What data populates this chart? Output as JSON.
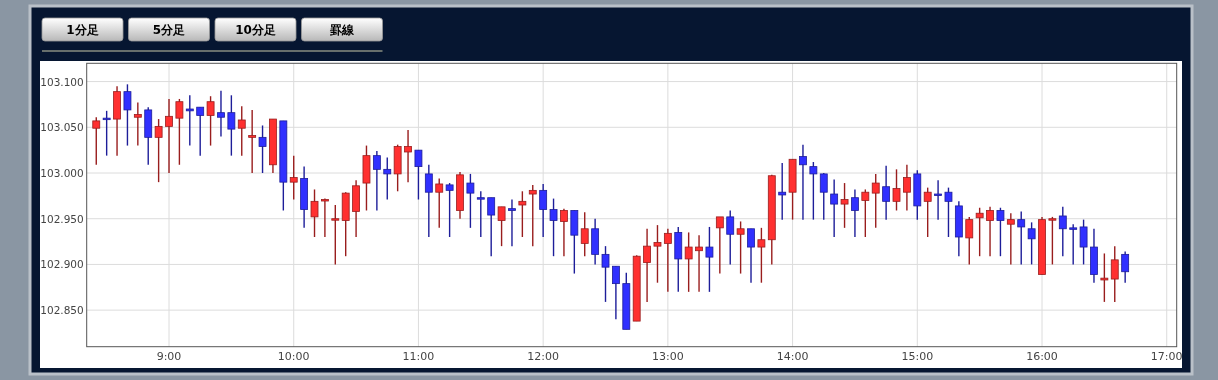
{
  "chart_data": {
    "type": "candlestick",
    "annotations": [
      "1分足",
      "5分足",
      "10分足",
      "罫線"
    ],
    "x": [
      8.4167,
      8.5,
      8.5833,
      8.6667,
      8.75,
      8.8333,
      8.9167,
      9,
      9.0833,
      9.1667,
      9.25,
      9.3333,
      9.4167,
      9.5,
      9.5833,
      9.6667,
      9.75,
      9.8333,
      9.9167,
      10,
      10.0833,
      10.1667,
      10.25,
      10.3333,
      10.4167,
      10.5,
      10.5833,
      10.6667,
      10.75,
      10.8333,
      10.9167,
      11,
      11.0833,
      11.1667,
      11.25,
      11.3333,
      11.4167,
      11.5,
      11.5833,
      11.6667,
      11.75,
      11.8333,
      11.9167,
      12,
      12.0833,
      12.1667,
      12.25,
      12.3333,
      12.4167,
      12.5,
      12.5833,
      12.6667,
      12.75,
      12.8333,
      12.9167,
      13,
      13.0833,
      13.1667,
      13.25,
      13.3333,
      13.4167,
      13.5,
      13.5833,
      13.6667,
      13.75,
      13.8333,
      13.9167,
      14,
      14.0833,
      14.1667,
      14.25,
      14.3333,
      14.4167,
      14.5,
      14.5833,
      14.6667,
      14.75,
      14.8333,
      14.9167,
      15,
      15.0833,
      15.1667,
      15.25,
      15.3333,
      15.4167,
      15.5,
      15.5833,
      15.6667,
      15.75,
      15.8333,
      15.9167,
      16,
      16.0833,
      16.1667,
      16.25,
      16.3333,
      16.4167,
      16.5,
      16.5833,
      16.6667
    ],
    "ohlc": [
      [
        103.049,
        103.061,
        103.009,
        103.057
      ],
      [
        103.06,
        103.068,
        103.019,
        103.059
      ],
      [
        103.059,
        103.095,
        103.019,
        103.089
      ],
      [
        103.089,
        103.097,
        103.03,
        103.069
      ],
      [
        103.061,
        103.077,
        103.03,
        103.064
      ],
      [
        103.069,
        103.072,
        103.009,
        103.039
      ],
      [
        103.039,
        103.059,
        102.99,
        103.051
      ],
      [
        103.051,
        103.081,
        103.0,
        103.062
      ],
      [
        103.06,
        103.081,
        103.009,
        103.078
      ],
      [
        103.07,
        103.085,
        103.03,
        103.068
      ],
      [
        103.072,
        103.072,
        103.019,
        103.063
      ],
      [
        103.063,
        103.084,
        103.03,
        103.078
      ],
      [
        103.066,
        103.09,
        103.04,
        103.061
      ],
      [
        103.066,
        103.085,
        103.019,
        103.048
      ],
      [
        103.049,
        103.073,
        103.019,
        103.058
      ],
      [
        103.039,
        103.069,
        103.0,
        103.041
      ],
      [
        103.039,
        103.052,
        103.0,
        103.029
      ],
      [
        103.009,
        103.059,
        103.0,
        103.059
      ],
      [
        103.057,
        103.057,
        102.959,
        102.99
      ],
      [
        102.99,
        103.019,
        102.971,
        102.995
      ],
      [
        102.994,
        103.007,
        102.94,
        102.96
      ],
      [
        102.952,
        102.982,
        102.93,
        102.969
      ],
      [
        102.97,
        102.972,
        102.93,
        102.971
      ],
      [
        102.949,
        102.965,
        102.9,
        102.95
      ],
      [
        102.948,
        102.979,
        102.909,
        102.978
      ],
      [
        102.958,
        102.992,
        102.93,
        102.986
      ],
      [
        102.989,
        103.03,
        102.959,
        103.019
      ],
      [
        103.019,
        103.024,
        102.959,
        103.004
      ],
      [
        103.004,
        103.017,
        102.971,
        102.999
      ],
      [
        102.999,
        103.031,
        102.98,
        103.029
      ],
      [
        103.023,
        103.047,
        102.99,
        103.029
      ],
      [
        103.025,
        103.025,
        102.971,
        103.007
      ],
      [
        102.999,
        103.009,
        102.93,
        102.979
      ],
      [
        102.979,
        102.994,
        102.94,
        102.988
      ],
      [
        102.987,
        102.989,
        102.93,
        102.981
      ],
      [
        102.959,
        103.001,
        102.95,
        102.998
      ],
      [
        102.989,
        102.999,
        102.94,
        102.978
      ],
      [
        102.973,
        102.98,
        102.93,
        102.972
      ],
      [
        102.973,
        102.973,
        102.909,
        102.954
      ],
      [
        102.948,
        102.963,
        102.92,
        102.963
      ],
      [
        102.961,
        102.971,
        102.92,
        102.959
      ],
      [
        102.965,
        102.98,
        102.93,
        102.969
      ],
      [
        102.977,
        102.987,
        102.92,
        102.981
      ],
      [
        102.981,
        102.988,
        102.93,
        102.96
      ],
      [
        102.96,
        102.972,
        102.909,
        102.948
      ],
      [
        102.947,
        102.961,
        102.909,
        102.959
      ],
      [
        102.959,
        102.959,
        102.89,
        102.932
      ],
      [
        102.923,
        102.957,
        102.909,
        102.939
      ],
      [
        102.939,
        102.95,
        102.9,
        102.911
      ],
      [
        102.911,
        102.92,
        102.859,
        102.897
      ],
      [
        102.898,
        102.898,
        102.84,
        102.879
      ],
      [
        102.879,
        102.891,
        102.829,
        102.829
      ],
      [
        102.838,
        102.91,
        102.838,
        102.909
      ],
      [
        102.902,
        102.939,
        102.859,
        102.92
      ],
      [
        102.92,
        102.943,
        102.88,
        102.924
      ],
      [
        102.923,
        102.939,
        102.87,
        102.934
      ],
      [
        102.935,
        102.941,
        102.87,
        102.906
      ],
      [
        102.906,
        102.935,
        102.87,
        102.919
      ],
      [
        102.915,
        102.932,
        102.87,
        102.919
      ],
      [
        102.919,
        102.941,
        102.87,
        102.908
      ],
      [
        102.94,
        102.952,
        102.89,
        102.952
      ],
      [
        102.952,
        102.959,
        102.9,
        102.933
      ],
      [
        102.933,
        102.947,
        102.89,
        102.939
      ],
      [
        102.939,
        102.939,
        102.88,
        102.919
      ],
      [
        102.919,
        102.94,
        102.88,
        102.927
      ],
      [
        102.927,
        102.998,
        102.9,
        102.997
      ],
      [
        102.979,
        103.011,
        102.949,
        102.976
      ],
      [
        102.979,
        103.015,
        102.949,
        103.015
      ],
      [
        103.018,
        103.031,
        102.949,
        103.009
      ],
      [
        103.007,
        103.012,
        102.949,
        102.999
      ],
      [
        102.999,
        103.0,
        102.949,
        102.979
      ],
      [
        102.977,
        102.993,
        102.93,
        102.966
      ],
      [
        102.966,
        102.989,
        102.94,
        102.971
      ],
      [
        102.973,
        102.982,
        102.93,
        102.959
      ],
      [
        102.97,
        102.982,
        102.93,
        102.979
      ],
      [
        102.978,
        102.999,
        102.94,
        102.989
      ],
      [
        102.985,
        103.008,
        102.949,
        102.969
      ],
      [
        102.969,
        103.004,
        102.959,
        102.983
      ],
      [
        102.979,
        103.009,
        102.959,
        102.995
      ],
      [
        102.999,
        103.003,
        102.949,
        102.964
      ],
      [
        102.969,
        102.984,
        102.93,
        102.979
      ],
      [
        102.977,
        102.992,
        102.949,
        102.976
      ],
      [
        102.979,
        102.984,
        102.93,
        102.969
      ],
      [
        102.964,
        102.969,
        102.909,
        102.93
      ],
      [
        102.929,
        102.952,
        102.9,
        102.949
      ],
      [
        102.951,
        102.962,
        102.909,
        102.956
      ],
      [
        102.948,
        102.963,
        102.909,
        102.959
      ],
      [
        102.959,
        102.962,
        102.909,
        102.948
      ],
      [
        102.944,
        102.956,
        102.9,
        102.949
      ],
      [
        102.949,
        102.958,
        102.9,
        102.941
      ],
      [
        102.939,
        102.946,
        102.9,
        102.928
      ],
      [
        102.889,
        102.952,
        102.889,
        102.949
      ],
      [
        102.949,
        102.952,
        102.9,
        102.95
      ],
      [
        102.953,
        102.963,
        102.909,
        102.939
      ],
      [
        102.94,
        102.944,
        102.9,
        102.939
      ],
      [
        102.941,
        102.949,
        102.9,
        102.919
      ],
      [
        102.919,
        102.939,
        102.88,
        102.889
      ],
      [
        102.883,
        102.912,
        102.859,
        102.885
      ],
      [
        102.884,
        102.92,
        102.859,
        102.905
      ],
      [
        102.911,
        102.914,
        102.88,
        102.892
      ]
    ],
    "colors": [
      "#ff3030",
      "#3030ff",
      "#ff3030",
      "#3030ff",
      "#ff3030",
      "#3030ff",
      "#ff3030",
      "#ff3030",
      "#ff3030",
      "#3030ff",
      "#3030ff",
      "#ff3030",
      "#3030ff",
      "#3030ff",
      "#ff3030",
      "#ff3030",
      "#3030ff",
      "#ff3030",
      "#3030ff",
      "#ff3030",
      "#3030ff",
      "#ff3030",
      "#ff3030",
      "#ff3030",
      "#ff3030",
      "#ff3030",
      "#ff3030",
      "#3030ff",
      "#3030ff",
      "#ff3030",
      "#ff3030",
      "#3030ff",
      "#3030ff",
      "#ff3030",
      "#3030ff",
      "#ff3030",
      "#3030ff",
      "#3030ff",
      "#3030ff",
      "#ff3030",
      "#3030ff",
      "#ff3030",
      "#ff3030",
      "#3030ff",
      "#3030ff",
      "#ff3030",
      "#3030ff",
      "#ff3030",
      "#3030ff",
      "#3030ff",
      "#3030ff",
      "#3030ff",
      "#ff3030",
      "#ff3030",
      "#ff3030",
      "#ff3030",
      "#3030ff",
      "#ff3030",
      "#ff3030",
      "#3030ff",
      "#ff3030",
      "#3030ff",
      "#ff3030",
      "#3030ff",
      "#ff3030",
      "#ff3030",
      "#3030ff",
      "#ff3030",
      "#3030ff",
      "#3030ff",
      "#3030ff",
      "#3030ff",
      "#ff3030",
      "#3030ff",
      "#ff3030",
      "#ff3030",
      "#3030ff",
      "#ff3030",
      "#ff3030",
      "#3030ff",
      "#ff3030",
      "#3030ff",
      "#3030ff",
      "#3030ff",
      "#ff3030",
      "#ff3030",
      "#ff3030",
      "#3030ff",
      "#ff3030",
      "#3030ff",
      "#3030ff",
      "#ff3030",
      "#ff3030",
      "#3030ff",
      "#3030ff",
      "#3030ff",
      "#3030ff",
      "#ff3030",
      "#ff3030",
      "#3030ff"
    ],
    "xlim": [
      8.34,
      17.08
    ],
    "xticks": [
      {
        "value": 9,
        "label": "9:00"
      },
      {
        "value": 10,
        "label": "10:00"
      },
      {
        "value": 11,
        "label": "11:00"
      },
      {
        "value": 12,
        "label": "12:00"
      },
      {
        "value": 13,
        "label": "13:00"
      },
      {
        "value": 14,
        "label": "14:00"
      },
      {
        "value": 15,
        "label": "15:00"
      },
      {
        "value": 16,
        "label": "16:00"
      },
      {
        "value": 17,
        "label": "17:00"
      }
    ],
    "ylim": [
      102.81,
      103.12
    ],
    "yticks": [
      {
        "value": 102.85,
        "label": "102.850"
      },
      {
        "value": 102.9,
        "label": "102.900"
      },
      {
        "value": 102.95,
        "label": "102.950"
      },
      {
        "value": 103,
        "label": "103.000"
      },
      {
        "value": 103.05,
        "label": "103.050"
      },
      {
        "value": 103.1,
        "label": "103.100"
      }
    ],
    "grid": true
  }
}
